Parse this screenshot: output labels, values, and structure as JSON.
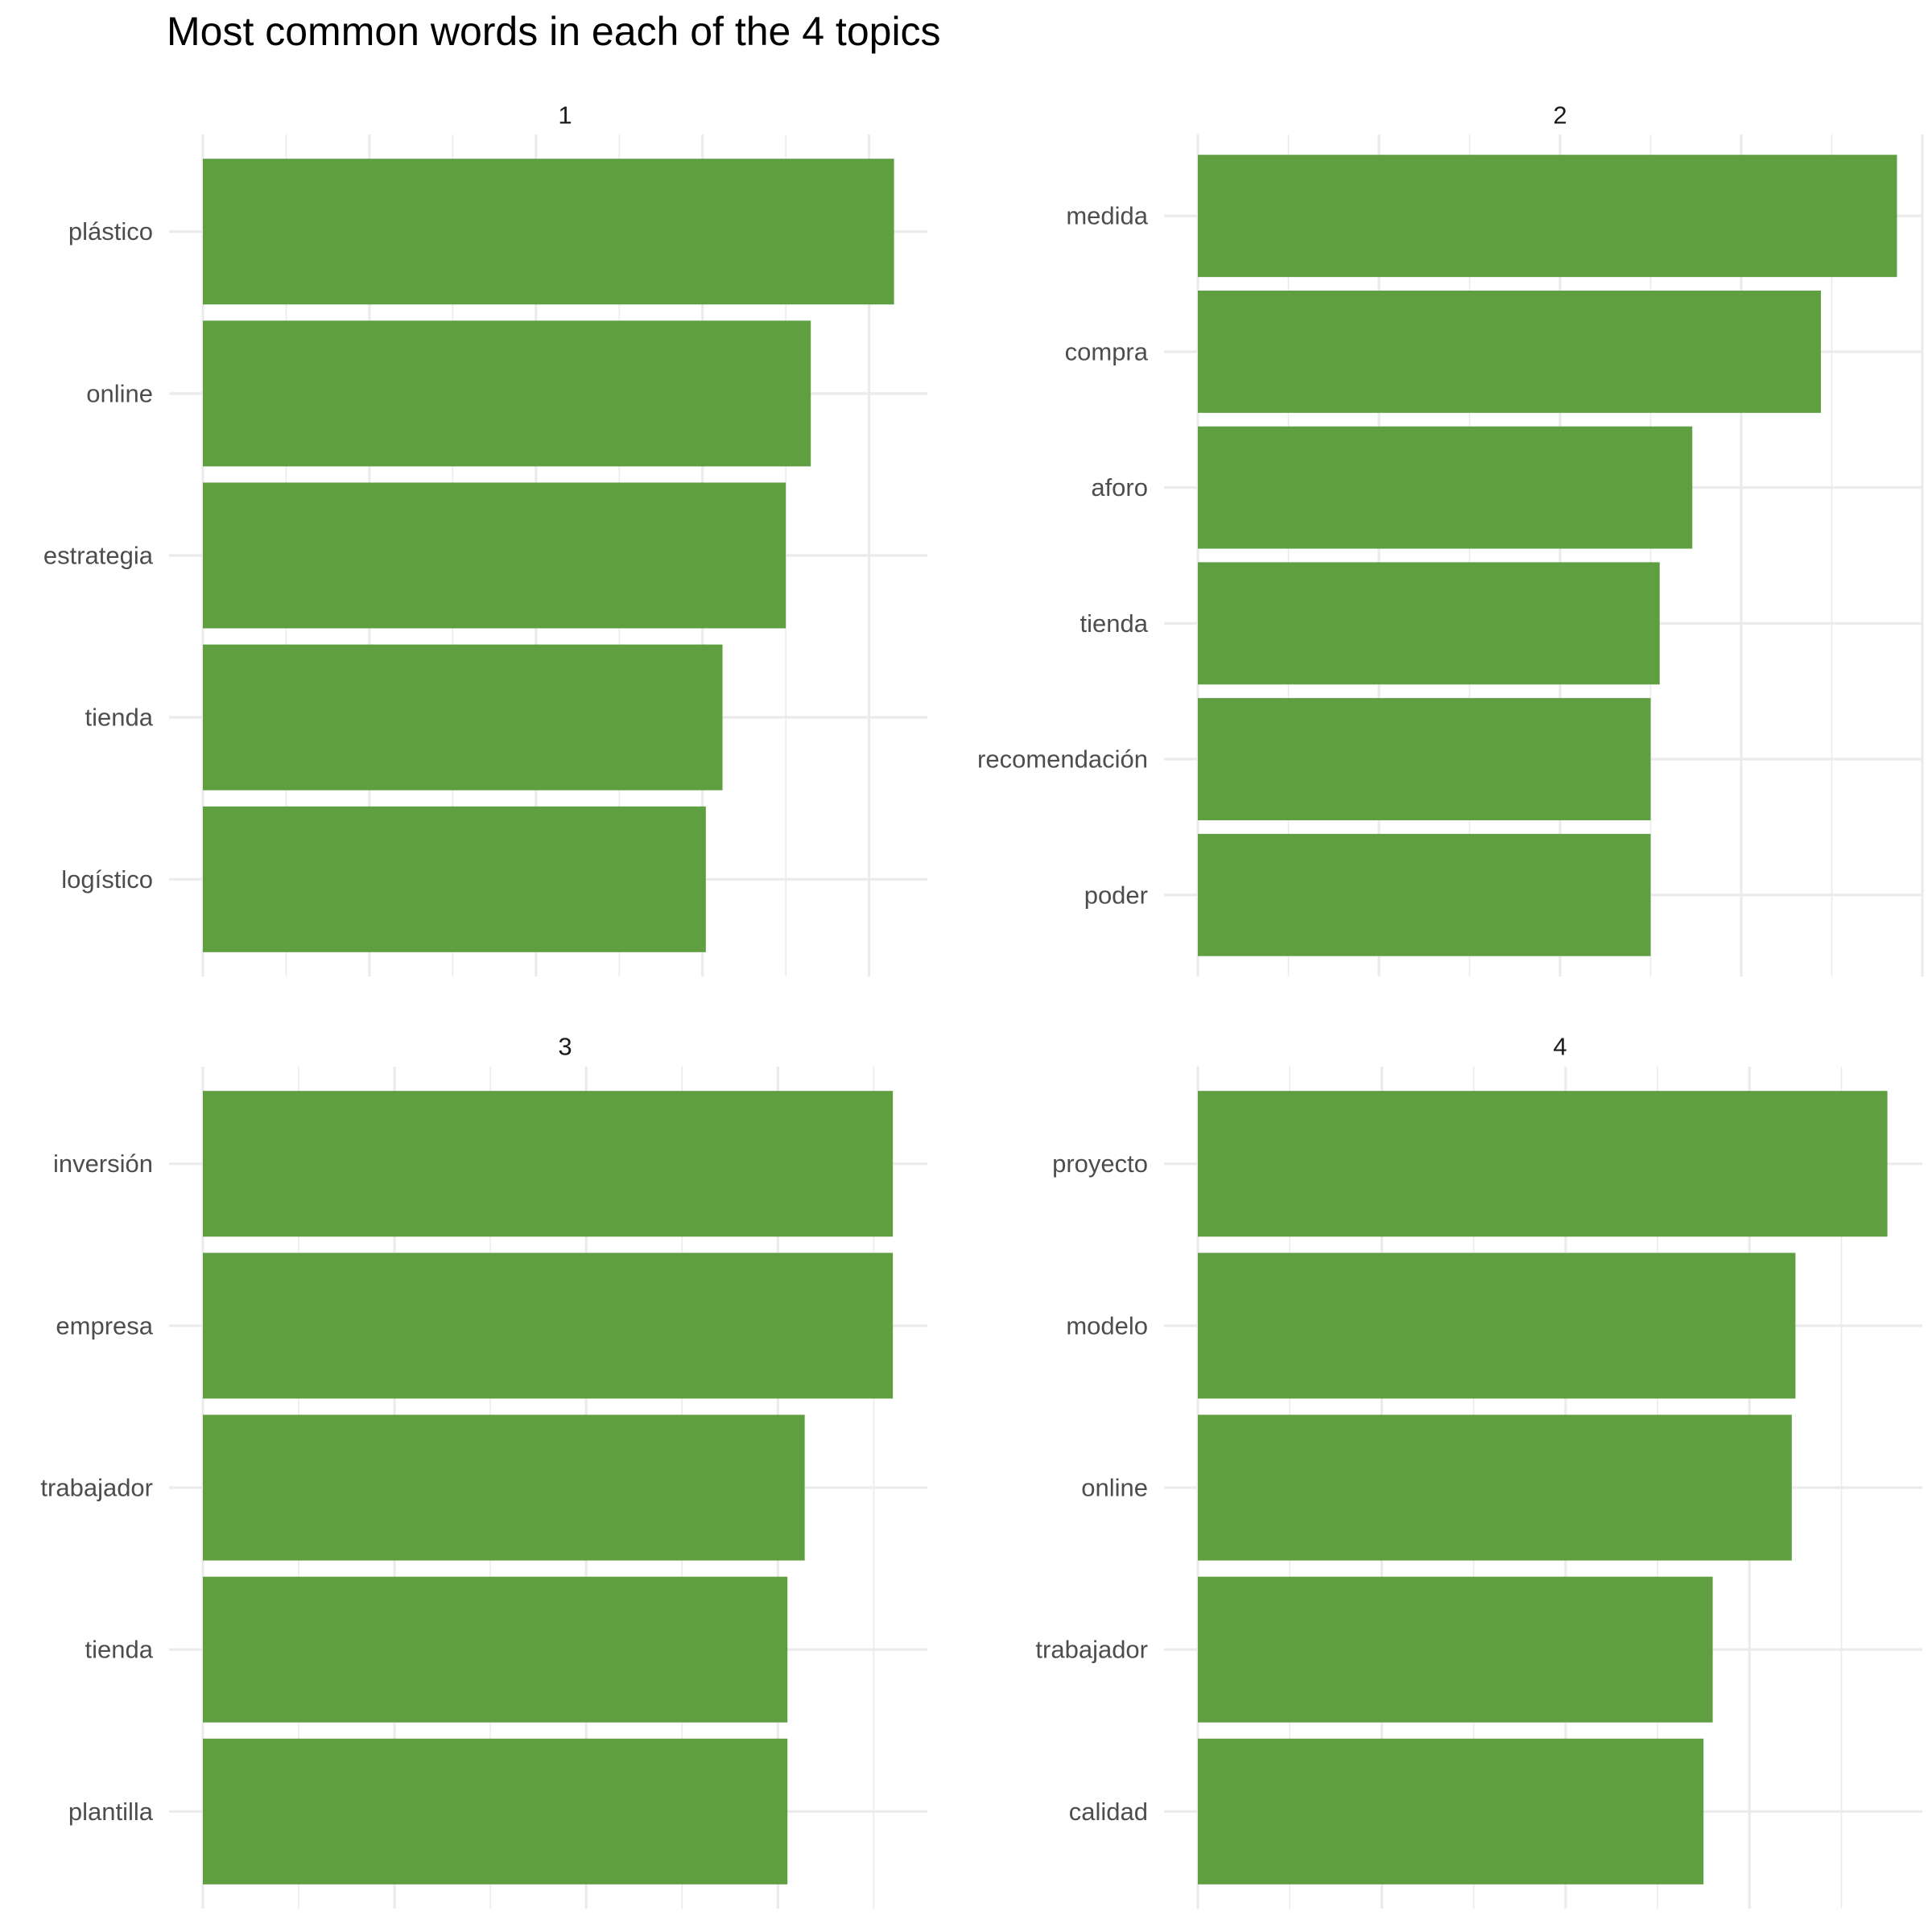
{
  "chart_data": {
    "type": "bar",
    "orientation": "horizontal",
    "title": "Most common words in each of the 4 topics",
    "xlabel": "",
    "ylabel": "",
    "grid": true,
    "x_tick_labels_shown": false,
    "bar_color": "#5f9f42",
    "grid_color": "#ebebeb",
    "panels": [
      {
        "facet": "1",
        "xlim": [
          0,
          0.0435
        ],
        "x_major": [
          0,
          0.01,
          0.02,
          0.03,
          0.04
        ],
        "x_minor": [
          0.005,
          0.015,
          0.025,
          0.035
        ],
        "categories": [
          "plástico",
          "online",
          "estrategia",
          "tienda",
          "logístico"
        ],
        "values": [
          0.0415,
          0.0365,
          0.035,
          0.0312,
          0.0302
        ]
      },
      {
        "facet": "2",
        "xlim": [
          0,
          0.04
        ],
        "x_major": [
          0,
          0.01,
          0.02,
          0.03,
          0.04
        ],
        "x_minor": [
          0.005,
          0.015,
          0.025,
          0.035
        ],
        "categories": [
          "medida",
          "compra",
          "aforo",
          "tienda",
          "recomendación",
          "poder"
        ],
        "values": [
          0.0386,
          0.0344,
          0.0273,
          0.0255,
          0.025,
          0.025
        ]
      },
      {
        "facet": "3",
        "xlim": [
          0,
          0.0378
        ],
        "x_major": [
          0,
          0.01,
          0.02,
          0.03
        ],
        "x_minor": [
          0.005,
          0.015,
          0.025,
          0.035
        ],
        "categories": [
          "inversión",
          "empresa",
          "trabajador",
          "tienda",
          "plantilla"
        ],
        "values": [
          0.036,
          0.036,
          0.0314,
          0.0305,
          0.0305
        ]
      },
      {
        "facet": "4",
        "xlim": [
          0,
          0.0394
        ],
        "x_major": [
          0,
          0.01,
          0.02,
          0.03
        ],
        "x_minor": [
          0.005,
          0.015,
          0.025,
          0.035
        ],
        "categories": [
          "proyecto",
          "modelo",
          "online",
          "trabajador",
          "calidad"
        ],
        "values": [
          0.0375,
          0.0325,
          0.0323,
          0.028,
          0.0275
        ]
      }
    ]
  }
}
